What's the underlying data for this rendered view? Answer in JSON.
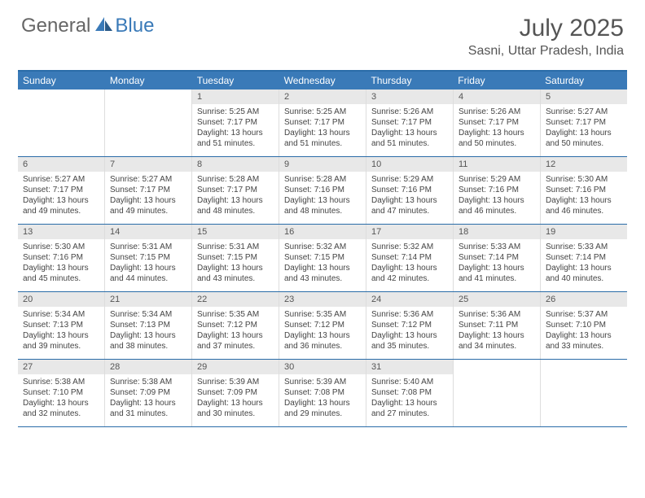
{
  "logo": {
    "text1": "General",
    "text2": "Blue"
  },
  "title": "July 2025",
  "location": "Sasni, Uttar Pradesh, India",
  "weekdays": [
    "Sunday",
    "Monday",
    "Tuesday",
    "Wednesday",
    "Thursday",
    "Friday",
    "Saturday"
  ],
  "colors": {
    "header_bg": "#3a7ab8",
    "header_text": "#ffffff",
    "border": "#2a6ca8",
    "daynum_bg": "#e8e8e8",
    "logo_blue": "#3a7ab8",
    "logo_gray": "#666666",
    "body_text": "#444444"
  },
  "fonts": {
    "title_size_pt": 22,
    "location_size_pt": 12,
    "weekday_size_pt": 9,
    "cell_size_pt": 7.5,
    "daynum_size_pt": 8
  },
  "layout": {
    "cols": 7,
    "rows": 5,
    "first_day_col": 2
  },
  "labels": {
    "sunrise": "Sunrise:",
    "sunset": "Sunset:",
    "daylight": "Daylight:"
  },
  "days": [
    {
      "n": 1,
      "sunrise": "5:25 AM",
      "sunset": "7:17 PM",
      "daylight": "13 hours and 51 minutes."
    },
    {
      "n": 2,
      "sunrise": "5:25 AM",
      "sunset": "7:17 PM",
      "daylight": "13 hours and 51 minutes."
    },
    {
      "n": 3,
      "sunrise": "5:26 AM",
      "sunset": "7:17 PM",
      "daylight": "13 hours and 51 minutes."
    },
    {
      "n": 4,
      "sunrise": "5:26 AM",
      "sunset": "7:17 PM",
      "daylight": "13 hours and 50 minutes."
    },
    {
      "n": 5,
      "sunrise": "5:27 AM",
      "sunset": "7:17 PM",
      "daylight": "13 hours and 50 minutes."
    },
    {
      "n": 6,
      "sunrise": "5:27 AM",
      "sunset": "7:17 PM",
      "daylight": "13 hours and 49 minutes."
    },
    {
      "n": 7,
      "sunrise": "5:27 AM",
      "sunset": "7:17 PM",
      "daylight": "13 hours and 49 minutes."
    },
    {
      "n": 8,
      "sunrise": "5:28 AM",
      "sunset": "7:17 PM",
      "daylight": "13 hours and 48 minutes."
    },
    {
      "n": 9,
      "sunrise": "5:28 AM",
      "sunset": "7:16 PM",
      "daylight": "13 hours and 48 minutes."
    },
    {
      "n": 10,
      "sunrise": "5:29 AM",
      "sunset": "7:16 PM",
      "daylight": "13 hours and 47 minutes."
    },
    {
      "n": 11,
      "sunrise": "5:29 AM",
      "sunset": "7:16 PM",
      "daylight": "13 hours and 46 minutes."
    },
    {
      "n": 12,
      "sunrise": "5:30 AM",
      "sunset": "7:16 PM",
      "daylight": "13 hours and 46 minutes."
    },
    {
      "n": 13,
      "sunrise": "5:30 AM",
      "sunset": "7:16 PM",
      "daylight": "13 hours and 45 minutes."
    },
    {
      "n": 14,
      "sunrise": "5:31 AM",
      "sunset": "7:15 PM",
      "daylight": "13 hours and 44 minutes."
    },
    {
      "n": 15,
      "sunrise": "5:31 AM",
      "sunset": "7:15 PM",
      "daylight": "13 hours and 43 minutes."
    },
    {
      "n": 16,
      "sunrise": "5:32 AM",
      "sunset": "7:15 PM",
      "daylight": "13 hours and 43 minutes."
    },
    {
      "n": 17,
      "sunrise": "5:32 AM",
      "sunset": "7:14 PM",
      "daylight": "13 hours and 42 minutes."
    },
    {
      "n": 18,
      "sunrise": "5:33 AM",
      "sunset": "7:14 PM",
      "daylight": "13 hours and 41 minutes."
    },
    {
      "n": 19,
      "sunrise": "5:33 AM",
      "sunset": "7:14 PM",
      "daylight": "13 hours and 40 minutes."
    },
    {
      "n": 20,
      "sunrise": "5:34 AM",
      "sunset": "7:13 PM",
      "daylight": "13 hours and 39 minutes."
    },
    {
      "n": 21,
      "sunrise": "5:34 AM",
      "sunset": "7:13 PM",
      "daylight": "13 hours and 38 minutes."
    },
    {
      "n": 22,
      "sunrise": "5:35 AM",
      "sunset": "7:12 PM",
      "daylight": "13 hours and 37 minutes."
    },
    {
      "n": 23,
      "sunrise": "5:35 AM",
      "sunset": "7:12 PM",
      "daylight": "13 hours and 36 minutes."
    },
    {
      "n": 24,
      "sunrise": "5:36 AM",
      "sunset": "7:12 PM",
      "daylight": "13 hours and 35 minutes."
    },
    {
      "n": 25,
      "sunrise": "5:36 AM",
      "sunset": "7:11 PM",
      "daylight": "13 hours and 34 minutes."
    },
    {
      "n": 26,
      "sunrise": "5:37 AM",
      "sunset": "7:10 PM",
      "daylight": "13 hours and 33 minutes."
    },
    {
      "n": 27,
      "sunrise": "5:38 AM",
      "sunset": "7:10 PM",
      "daylight": "13 hours and 32 minutes."
    },
    {
      "n": 28,
      "sunrise": "5:38 AM",
      "sunset": "7:09 PM",
      "daylight": "13 hours and 31 minutes."
    },
    {
      "n": 29,
      "sunrise": "5:39 AM",
      "sunset": "7:09 PM",
      "daylight": "13 hours and 30 minutes."
    },
    {
      "n": 30,
      "sunrise": "5:39 AM",
      "sunset": "7:08 PM",
      "daylight": "13 hours and 29 minutes."
    },
    {
      "n": 31,
      "sunrise": "5:40 AM",
      "sunset": "7:08 PM",
      "daylight": "13 hours and 27 minutes."
    }
  ]
}
